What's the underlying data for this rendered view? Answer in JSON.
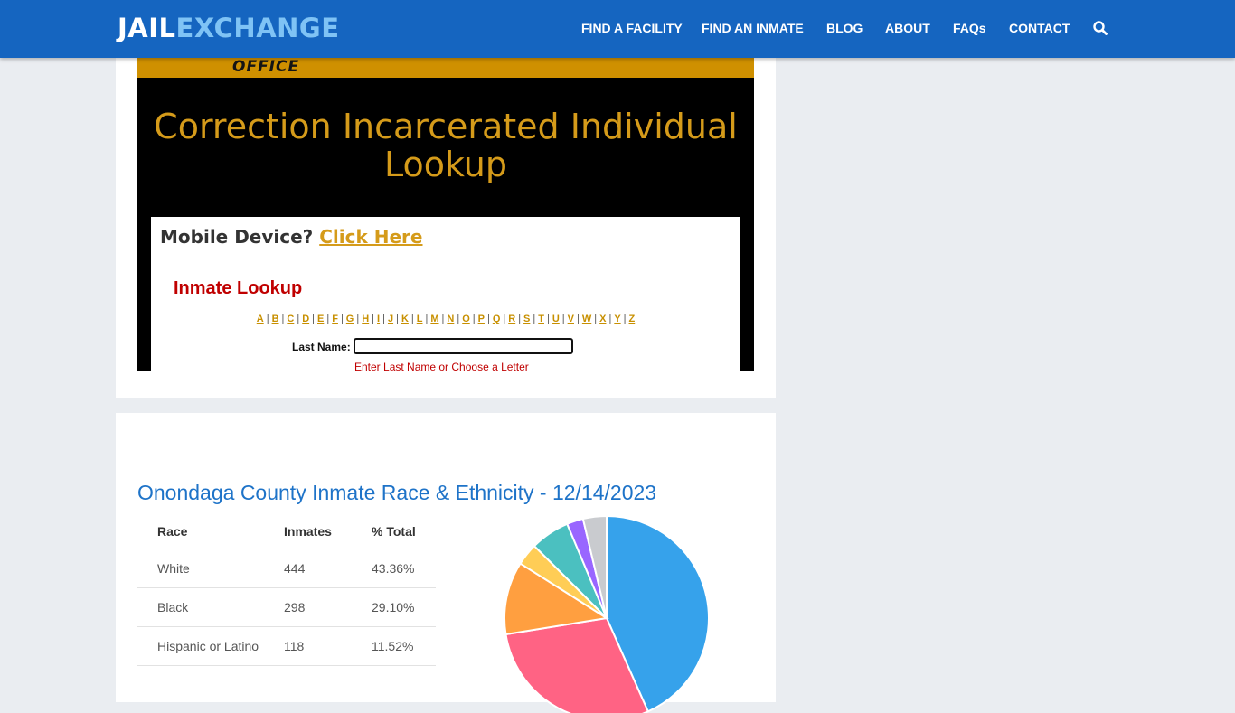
{
  "logo": {
    "part1": "JAIL",
    "part2": "EXCHANGE"
  },
  "nav": [
    {
      "label": "FIND A FACILITY"
    },
    {
      "label": "FIND AN INMATE"
    },
    {
      "label": "BLOG"
    },
    {
      "label": "ABOUT"
    },
    {
      "label": "FAQs"
    },
    {
      "label": "CONTACT"
    }
  ],
  "banner": {
    "text": "OFFICE"
  },
  "panel": {
    "title": "Correction Incarcerated Individual Lookup",
    "mobile_question": "Mobile Device?",
    "mobile_link": "Click Here",
    "lookup_title": "Inmate Lookup",
    "letters": [
      "A",
      "B",
      "C",
      "D",
      "E",
      "F",
      "G",
      "H",
      "I",
      "J",
      "K",
      "L",
      "M",
      "N",
      "O",
      "P",
      "Q",
      "R",
      "S",
      "T",
      "U",
      "V",
      "W",
      "X",
      "Y",
      "Z"
    ],
    "last_name_label": "Last Name:",
    "last_name_value": "",
    "hint": "Enter Last Name or Choose a Letter"
  },
  "stats": {
    "title": "Onondaga County Inmate Race & Ethnicity - 12/14/2023",
    "headers": [
      "Race",
      "Inmates",
      "% Total"
    ],
    "rows": [
      {
        "race": "White",
        "inmates": "444",
        "pct": "43.36%"
      },
      {
        "race": "Black",
        "inmates": "298",
        "pct": "29.10%"
      },
      {
        "race": "Hispanic or Latino",
        "inmates": "118",
        "pct": "11.52%"
      }
    ]
  },
  "chart_data": {
    "type": "pie",
    "values": [
      43.36,
      29.1,
      11.52,
      3.5,
      6.2,
      2.6,
      3.72
    ],
    "colors": [
      "#36a2eb",
      "#ff6384",
      "#ff9f40",
      "#ffcd56",
      "#4bc0c0",
      "#9966ff",
      "#c9cbcf"
    ]
  }
}
